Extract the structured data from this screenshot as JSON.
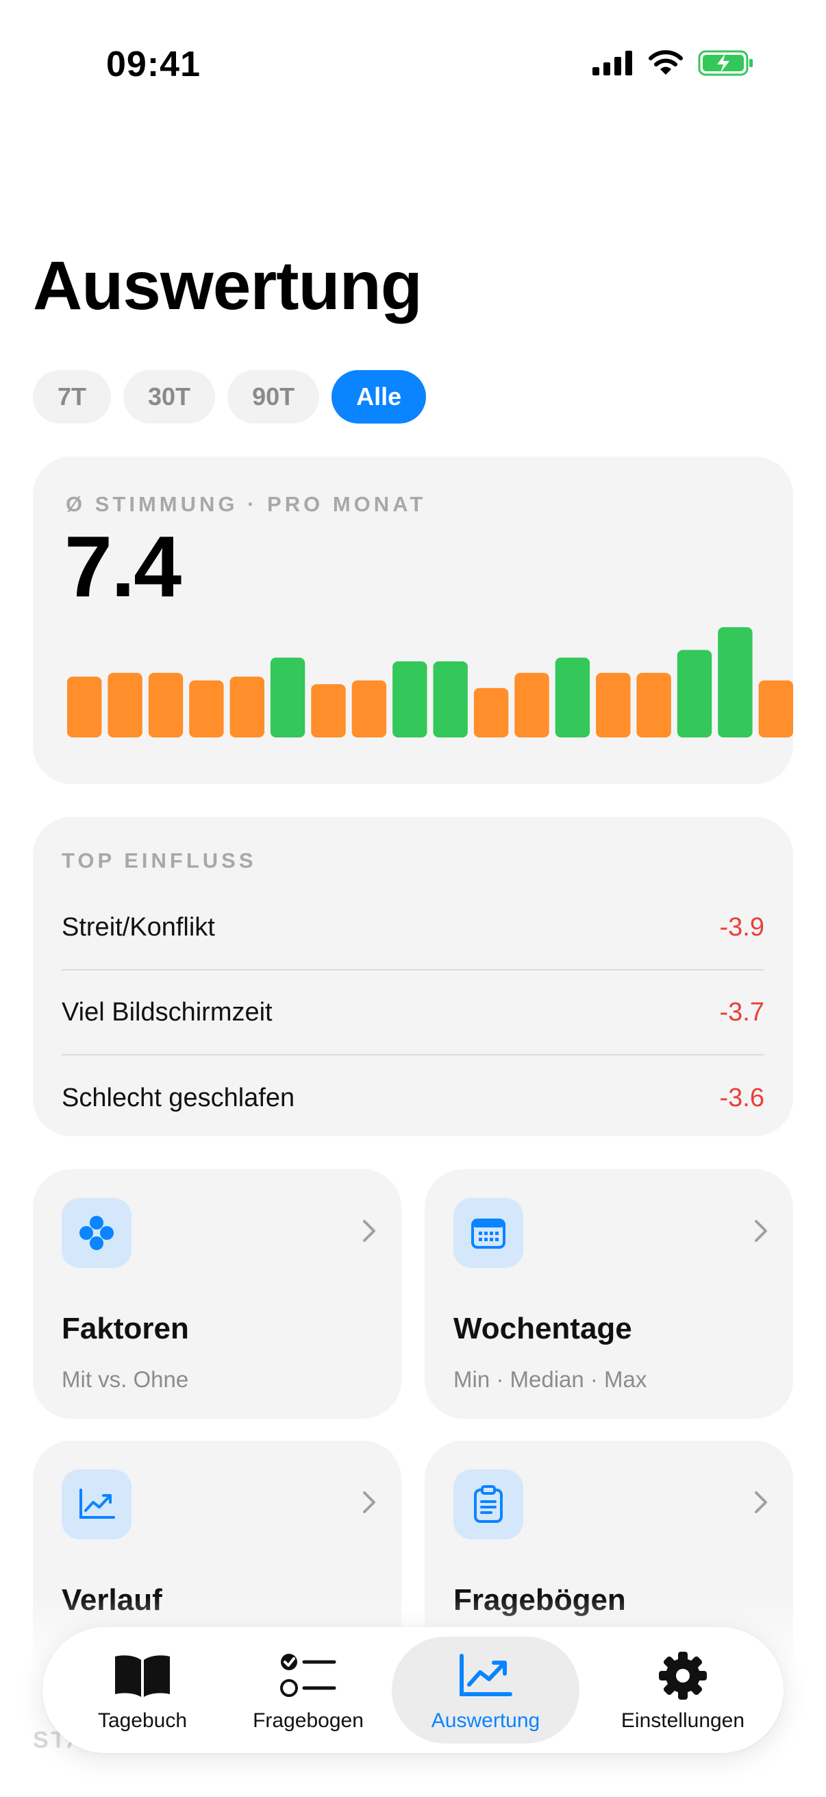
{
  "status_bar": {
    "time": "09:41"
  },
  "page": {
    "title": "Auswertung"
  },
  "range_tabs": [
    {
      "label": "7T",
      "active": false
    },
    {
      "label": "30T",
      "active": false
    },
    {
      "label": "90T",
      "active": false
    },
    {
      "label": "Alle",
      "active": true
    }
  ],
  "mood_card": {
    "label": "Ø STIMMUNG · PRO MONAT",
    "value": "7.4"
  },
  "chart_data": {
    "type": "bar",
    "values": [
      7.1,
      7.2,
      7.2,
      7.0,
      7.1,
      7.6,
      6.9,
      7.0,
      7.5,
      7.5,
      6.8,
      7.2,
      7.6,
      7.2,
      7.2,
      7.8,
      8.4,
      7.0
    ],
    "colors": [
      "orange",
      "orange",
      "orange",
      "orange",
      "orange",
      "green",
      "orange",
      "orange",
      "green",
      "green",
      "orange",
      "orange",
      "green",
      "orange",
      "orange",
      "green",
      "green",
      "orange"
    ],
    "palette": {
      "orange": "#ff8e2b",
      "green": "#34c759"
    }
  },
  "influence_card": {
    "label": "TOP EINFLUSS",
    "items": [
      {
        "name": "Streit/Konflikt",
        "value": "-3.9"
      },
      {
        "name": "Viel Bildschirmzeit",
        "value": "-3.7"
      },
      {
        "name": "Schlecht geschlafen",
        "value": "-3.6"
      }
    ]
  },
  "nav_cards": [
    {
      "title": "Faktoren",
      "subtitle": "Mit vs. Ohne",
      "icon": "dots-icon"
    },
    {
      "title": "Wochentage",
      "subtitle": "Min · Median · Max",
      "icon": "calendar-icon"
    },
    {
      "title": "Verlauf",
      "subtitle": "",
      "icon": "trend-chart-icon"
    },
    {
      "title": "Fragebögen",
      "subtitle": "",
      "icon": "clipboard-icon"
    }
  ],
  "ghost": {
    "text": "STA"
  },
  "tab_bar": [
    {
      "label": "Tagebuch",
      "icon": "book-icon"
    },
    {
      "label": "Fragebogen",
      "icon": "checklist-icon"
    },
    {
      "label": "Auswertung",
      "icon": "trend-icon",
      "active": true
    },
    {
      "label": "Einstellungen",
      "icon": "gear-icon"
    }
  ],
  "colors": {
    "accent": "#0a84ff",
    "negative": "#e8403a",
    "card_bg": "#f4f4f4"
  }
}
